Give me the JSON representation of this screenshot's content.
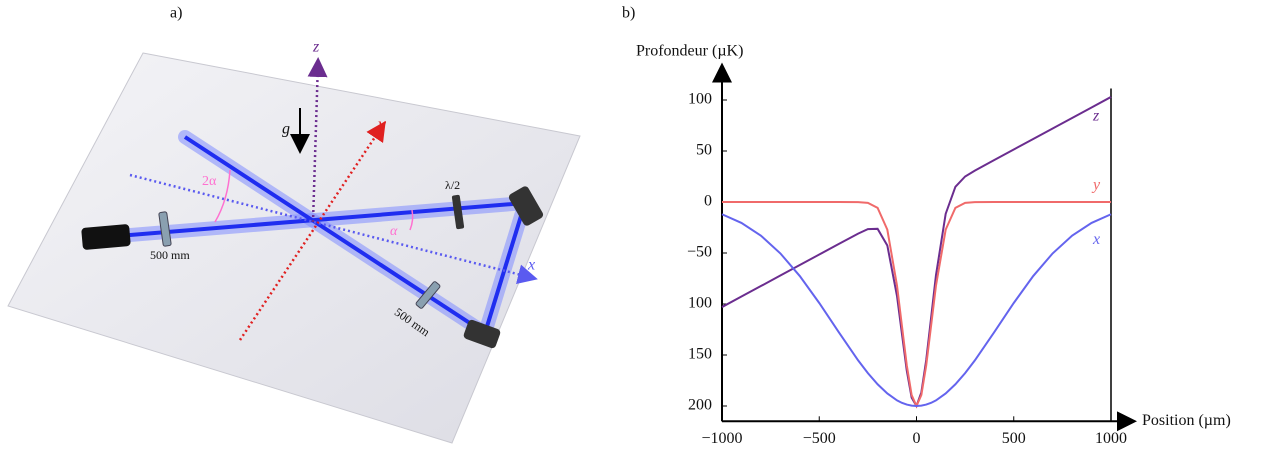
{
  "panel_a": {
    "label": "a)",
    "axis_z": "z",
    "axis_y": "y",
    "axis_x": "x",
    "gravity": "g",
    "angle_2a": "2α",
    "angle_a": "α",
    "waveplate": "λ/2",
    "lens_1": "500 mm",
    "lens_2": "500 mm"
  },
  "chart_data": {
    "type": "line",
    "panel_label": "b)",
    "ylabel": "Profondeur (µK)",
    "xlabel": "Position (µm)",
    "x": [
      -1000,
      -900,
      -800,
      -700,
      -600,
      -500,
      -400,
      -300,
      -250,
      -200,
      -150,
      -100,
      -75,
      -50,
      -25,
      0,
      25,
      50,
      75,
      100,
      150,
      200,
      250,
      300,
      400,
      500,
      600,
      700,
      800,
      900,
      1000
    ],
    "series": [
      {
        "name": "z",
        "color": "#6b2d8f",
        "values": [
          -103,
          -92.7,
          -82.4,
          -72.1,
          -61.8,
          -51.5,
          -41.2,
          -31.0,
          -26.6,
          -26.3,
          -42.6,
          -92.5,
          -129.0,
          -165.3,
          -191.8,
          -200,
          -186.6,
          -154.9,
          -113.6,
          -71.9,
          -11.6,
          14.9,
          25.0,
          30.8,
          41.2,
          51.5,
          61.8,
          72.1,
          82.4,
          92.7,
          103
        ]
      },
      {
        "name": "y",
        "color": "#f06a6a",
        "values": [
          0,
          0,
          0,
          0,
          0,
          0,
          0,
          -0.1,
          -0.8,
          -5.7,
          -27.1,
          -82.2,
          -121.3,
          -160.1,
          -189.2,
          -200,
          -189.2,
          -160.1,
          -121.3,
          -82.2,
          -27.1,
          -5.7,
          -0.8,
          -0.1,
          0,
          0,
          0,
          0,
          0,
          0,
          0
        ]
      },
      {
        "name": "x",
        "color": "#6464ee",
        "values": [
          -12.0,
          -20.5,
          -33.0,
          -50.4,
          -72.6,
          -99.0,
          -127.5,
          -155.3,
          -167.8,
          -178.7,
          -187.7,
          -194.5,
          -196.9,
          -198.6,
          -199.6,
          -200,
          -199.6,
          -198.6,
          -196.9,
          -194.5,
          -187.7,
          -178.7,
          -167.8,
          -155.3,
          -127.5,
          -99.0,
          -72.6,
          -50.4,
          -33.0,
          -20.5,
          -12.0
        ]
      }
    ],
    "xlim": [
      -1000,
      1000
    ],
    "ylim": [
      -215,
      125
    ],
    "xticks": [
      {
        "value": -1000,
        "label": "−1000"
      },
      {
        "value": -500,
        "label": "−500"
      },
      0,
      500,
      1000
    ],
    "yticks": [
      100,
      50,
      0,
      {
        "value": -50,
        "label": "−50"
      },
      {
        "value": -100,
        "label": "100"
      },
      {
        "value": -150,
        "label": "150"
      },
      {
        "value": -200,
        "label": "200"
      }
    ]
  }
}
